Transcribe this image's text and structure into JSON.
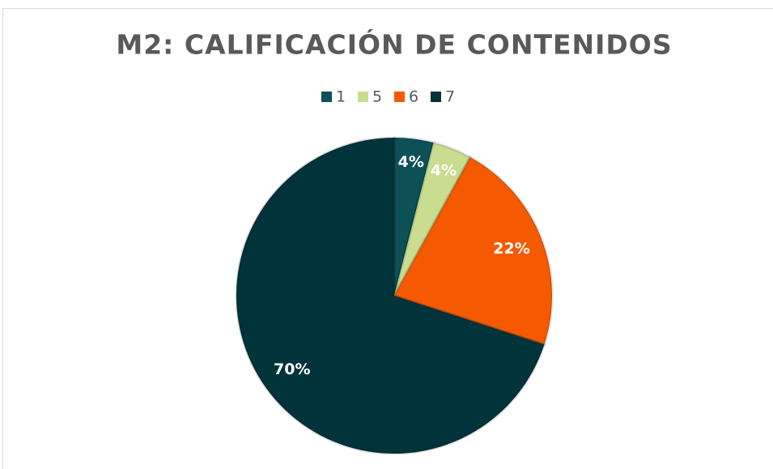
{
  "chart_data": {
    "type": "pie",
    "title": "M2: CALIFICACIÓN DE CONTENIDOS",
    "categories": [
      "1",
      "5",
      "6",
      "7"
    ],
    "values": [
      4,
      4,
      22,
      70
    ],
    "value_labels": [
      "4%",
      "4%",
      "22%",
      "70%"
    ],
    "colors": [
      "#0d5156",
      "#c9dc8f",
      "#f55a00",
      "#01343a"
    ],
    "legend": "top"
  }
}
